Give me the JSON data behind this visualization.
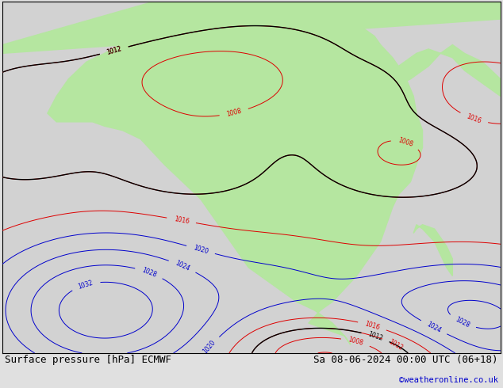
{
  "title_left": "Surface pressure [hPa] ECMWF",
  "title_right": "Sa 08-06-2024 00:00 UTC (06+18)",
  "copyright": "©weatheronline.co.uk",
  "background_color": "#e0e0e0",
  "land_color": "#b5e6a0",
  "sea_color": "#d2d2d2",
  "footer_fontsize": 9,
  "copyright_color": "#0000cc",
  "lon_min": -25,
  "lon_max": 58,
  "lat_min": -42,
  "lat_max": 40
}
